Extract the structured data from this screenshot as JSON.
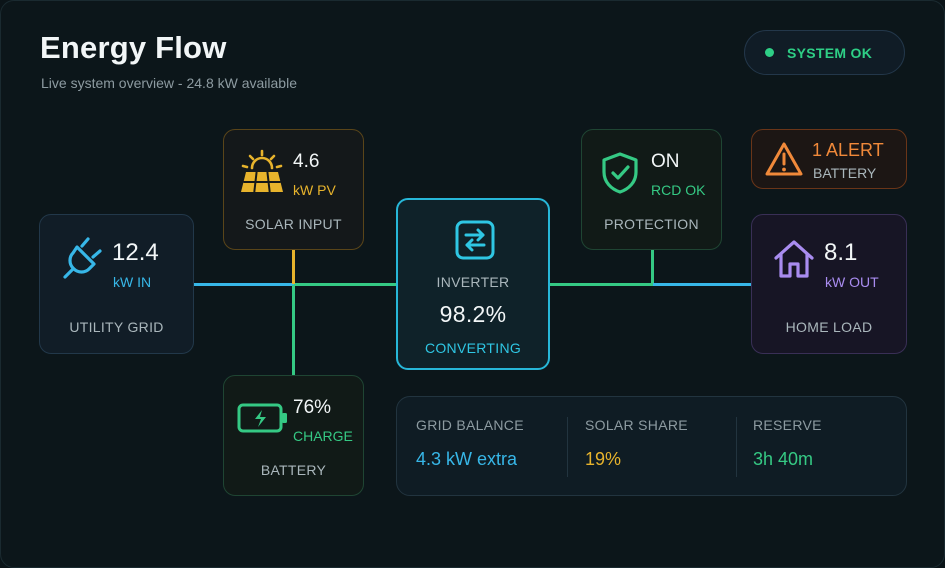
{
  "header": {
    "title": "Energy Flow",
    "subtitle": "Live system overview - 24.8 kW available",
    "status": "SYSTEM OK"
  },
  "nodes": {
    "grid": {
      "value": "12.4",
      "unit": "kW IN",
      "label": "UTILITY GRID",
      "icon": "plug-icon"
    },
    "solar": {
      "value": "4.6",
      "unit": "kW PV",
      "label": "SOLAR INPUT",
      "icon": "solar-panel-icon"
    },
    "battery": {
      "value": "76%",
      "unit": "CHARGE",
      "label": "BATTERY",
      "icon": "battery-charging-icon"
    },
    "inverter": {
      "label": "INVERTER",
      "value": "98.2%",
      "state": "CONVERTING",
      "icon": "swap-arrows-icon"
    },
    "protection": {
      "value": "ON",
      "unit": "RCD OK",
      "label": "PROTECTION",
      "icon": "shield-check-icon"
    },
    "alert": {
      "value": "1 ALERT",
      "unit": "BATTERY",
      "icon": "warning-icon"
    },
    "home": {
      "value": "8.1",
      "unit": "kW OUT",
      "label": "HOME LOAD",
      "icon": "home-icon"
    }
  },
  "stats": [
    {
      "label": "GRID BALANCE",
      "value": "4.3 kW extra"
    },
    {
      "label": "SOLAR SHARE",
      "value": "19%"
    },
    {
      "label": "RESERVE",
      "value": "3h 40m"
    }
  ],
  "colors": {
    "blue": "#37b7e8",
    "green": "#35c984",
    "amber": "#e7b32c",
    "orange": "#f0893a",
    "purple": "#a98cf0",
    "cyan": "#2fc7e4"
  }
}
